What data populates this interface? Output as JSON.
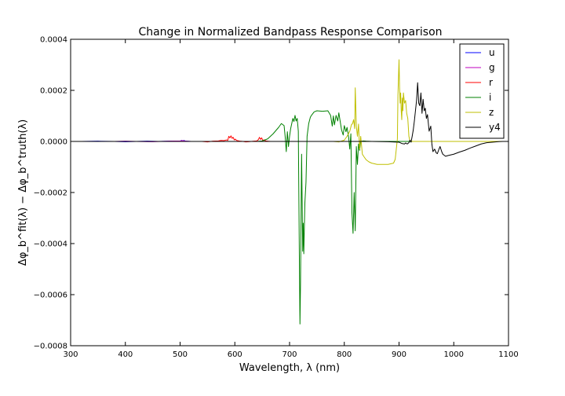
{
  "chart_data": {
    "type": "line",
    "title": "Change in Normalized Bandpass Response Comparison",
    "xlabel": "Wavelength, λ (nm)",
    "ylabel": "Δφ_b^fit(λ) − Δφ_b^truth(λ)",
    "xlim": [
      300,
      1100
    ],
    "ylim": [
      -0.0008,
      0.0004
    ],
    "x_ticks": [
      300,
      400,
      500,
      600,
      700,
      800,
      900,
      1000,
      1100
    ],
    "y_ticks": [
      -0.0008,
      -0.0006,
      -0.0004,
      -0.0002,
      0.0,
      0.0002,
      0.0004
    ],
    "x_tick_labels": [
      "300",
      "400",
      "500",
      "600",
      "700",
      "800",
      "900",
      "1000",
      "1100"
    ],
    "y_tick_labels": [
      "−0.0008",
      "−0.0006",
      "−0.0004",
      "−0.0002",
      "0.0000",
      "0.0002",
      "0.0004"
    ],
    "legend_position": "top-right",
    "grid": false,
    "series": [
      {
        "name": "u",
        "color": "#0000ff",
        "x": [
          300,
          320,
          350,
          380,
          400,
          420,
          440,
          460,
          480,
          500,
          503,
          505,
          507,
          510,
          520,
          540,
          560,
          600,
          700,
          1100
        ],
        "y": [
          0,
          0,
          1e-06,
          0,
          -1e-06,
          0,
          1e-06,
          0,
          1e-06,
          1e-06,
          4e-06,
          2e-06,
          4e-06,
          1e-06,
          0,
          0,
          0,
          0,
          0,
          0
        ]
      },
      {
        "name": "g",
        "color": "#bf00bf",
        "x": [
          300,
          380,
          400,
          420,
          450,
          480,
          500,
          505,
          510,
          520,
          540,
          560,
          600,
          700,
          1100
        ],
        "y": [
          0,
          0,
          1e-06,
          0,
          -1e-06,
          1e-06,
          2e-06,
          3e-06,
          1e-06,
          0,
          0,
          0,
          0,
          0,
          0
        ]
      },
      {
        "name": "r",
        "color": "#ff0000",
        "x": [
          300,
          540,
          550,
          560,
          570,
          575,
          580,
          585,
          587,
          589,
          591,
          593,
          595,
          597,
          599,
          601,
          603,
          605,
          610,
          615,
          620,
          625,
          630,
          635,
          640,
          643,
          645,
          647,
          649,
          651,
          653,
          655,
          657,
          660,
          665,
          670,
          680,
          700,
          1100
        ],
        "y": [
          0,
          0,
          -2e-06,
          1e-06,
          2e-06,
          4e-06,
          3e-06,
          6e-06,
          4e-06,
          2e-05,
          1.4e-05,
          2.2e-05,
          1.2e-05,
          1.6e-05,
          6e-06,
          9e-06,
          4e-06,
          3e-06,
          1e-06,
          0,
          -2e-06,
          -1e-06,
          0,
          1e-06,
          2e-06,
          7e-06,
          1.6e-05,
          8e-06,
          1.4e-05,
          4e-06,
          6e-06,
          3e-06,
          2e-06,
          1e-06,
          0,
          0,
          0,
          0,
          0
        ]
      },
      {
        "name": "i",
        "color": "#008000",
        "x": [
          300,
          640,
          650,
          660,
          670,
          680,
          685,
          690,
          692,
          694,
          696,
          698,
          700,
          702,
          704,
          706,
          708,
          710,
          712,
          714,
          716,
          718,
          719,
          720,
          722,
          724,
          725,
          726,
          728,
          730,
          732,
          735,
          738,
          740,
          745,
          750,
          760,
          770,
          775,
          778,
          780,
          782,
          785,
          788,
          790,
          792,
          795,
          798,
          800,
          803,
          805,
          808,
          810,
          812,
          814,
          816,
          818,
          820,
          822,
          824,
          826,
          828,
          830,
          835,
          840,
          850,
          900,
          1100
        ],
        "y": [
          0,
          0,
          2e-06,
          1e-05,
          3e-05,
          5.5e-05,
          7e-05,
          6.2e-05,
          1.8e-05,
          -4e-05,
          3.8e-05,
          -2e-05,
          2e-05,
          5e-05,
          7e-05,
          9e-05,
          7.8e-05,
          0.000102,
          8e-05,
          9e-05,
          4e-05,
          -0.00048,
          -0.000715,
          -0.00056,
          -5e-05,
          -0.00043,
          -0.00032,
          -0.00044,
          -0.00024,
          -0.00016,
          2e-05,
          7e-05,
          9.5e-05,
          0.000102,
          0.000116,
          0.00012,
          0.000118,
          0.00012,
          0.000102,
          6e-05,
          0.0001,
          6.5e-05,
          0.000102,
          8e-05,
          0.000112,
          8.5e-05,
          4.5e-05,
          2.5e-05,
          6.2e-05,
          3.8e-05,
          5.5e-05,
          1.5e-05,
          -3e-05,
          3e-05,
          -0.00028,
          -0.00036,
          -0.0002,
          -0.00035,
          -2e-05,
          -9e-05,
          -1e-05,
          -3.5e-05,
          0,
          2e-06,
          1e-06,
          0,
          0,
          0
        ]
      },
      {
        "name": "z",
        "color": "#bfbf00",
        "x": [
          300,
          780,
          790,
          800,
          805,
          810,
          813,
          815,
          817,
          819,
          820,
          822,
          824,
          826,
          828,
          830,
          833,
          836,
          840,
          845,
          850,
          860,
          870,
          880,
          890,
          893,
          895,
          897,
          898,
          899,
          900,
          901,
          902,
          903,
          904,
          905,
          906,
          907,
          908,
          910,
          912,
          914,
          916,
          918,
          920,
          925,
          930,
          940,
          950,
          1000,
          1100
        ],
        "y": [
          0,
          0,
          -2e-06,
          5e-06,
          2e-05,
          4e-05,
          6.5e-05,
          7e-05,
          8.5e-05,
          5e-05,
          0.00021,
          6e-05,
          2e-05,
          6.8e-05,
          -3e-05,
          2e-05,
          -5e-05,
          -6e-05,
          -7.2e-05,
          -8e-05,
          -8.5e-05,
          -9e-05,
          -9e-05,
          -9e-05,
          -8.5e-05,
          -7e-05,
          -3e-05,
          1e-05,
          0.00018,
          0.00025,
          0.00032,
          0.00021,
          0.00015,
          0.00019,
          0.00012,
          8.5e-05,
          0.00017,
          0.00012,
          0.00019,
          0.00015,
          0.00016,
          0.00011,
          9e-05,
          2e-05,
          2e-06,
          0,
          0,
          0,
          0,
          0,
          0
        ]
      },
      {
        "name": "y4",
        "color": "#000000",
        "x": [
          300,
          800,
          850,
          880,
          900,
          905,
          910,
          912,
          915,
          918,
          920,
          922,
          924,
          926,
          928,
          930,
          932,
          934,
          936,
          938,
          940,
          942,
          944,
          946,
          948,
          950,
          952,
          955,
          958,
          960,
          962,
          965,
          968,
          970,
          973,
          975,
          978,
          980,
          985,
          990,
          1000,
          1010,
          1020,
          1030,
          1040,
          1050,
          1060,
          1070,
          1080,
          1090,
          1100
        ],
        "y": [
          0,
          0,
          0,
          -1e-06,
          -3e-06,
          -8e-06,
          -1e-05,
          -6e-06,
          -1e-05,
          -5e-06,
          5e-06,
          -3e-06,
          2e-05,
          4.5e-05,
          8e-05,
          0.00012,
          0.00016,
          0.00023,
          0.00015,
          0.00014,
          0.00019,
          0.00011,
          0.000165,
          0.00012,
          0.00013,
          9e-05,
          0.000105,
          4e-05,
          6e-05,
          -1e-05,
          -4e-05,
          -3e-05,
          -4.5e-05,
          -4.8e-05,
          -3e-05,
          -2e-05,
          -4e-05,
          -5e-05,
          -5.8e-05,
          -5.5e-05,
          -5e-05,
          -4.2e-05,
          -3.5e-05,
          -2.6e-05,
          -1.8e-05,
          -1e-05,
          -5e-06,
          -3e-06,
          -1e-06,
          0,
          0
        ]
      }
    ]
  }
}
